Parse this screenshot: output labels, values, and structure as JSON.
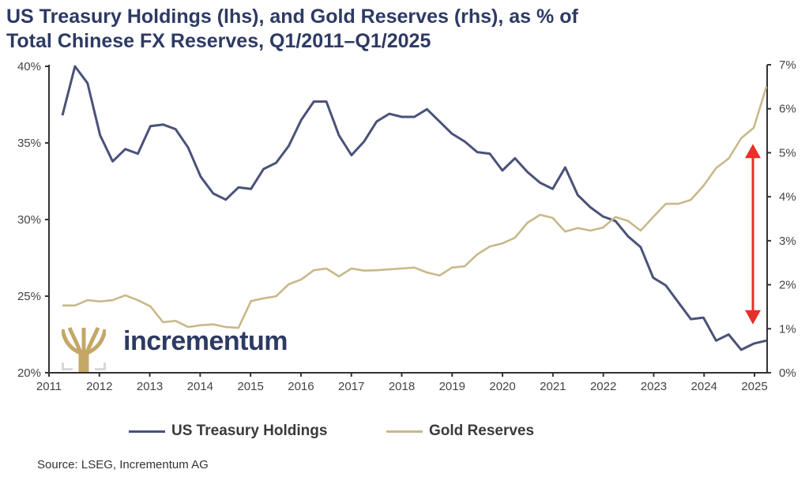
{
  "title_line1": "US Treasury Holdings (lhs), and Gold Reserves (rhs), as % of",
  "title_line2": "Total Chinese FX Reserves, Q1/2011–Q1/2025",
  "source": "Source: LSEG, Incrementum AG",
  "logo": {
    "text": "incrementum",
    "icon": "tree-icon"
  },
  "colors": {
    "treasury": "#4a5278",
    "gold": "#c8b98a",
    "arrow": "#e8302a",
    "axis": "#333333"
  },
  "chart_data": {
    "type": "line",
    "title": "US Treasury Holdings (lhs), and Gold Reserves (rhs), as % of Total Chinese FX Reserves, Q1/2011–Q1/2025",
    "xlabel": "",
    "ylabel_left": "",
    "ylabel_right": "",
    "x_start": 2011.25,
    "x_step": 0.25,
    "xlim": [
      2011,
      2025.25
    ],
    "x_ticks": [
      "2011",
      "2012",
      "2013",
      "2014",
      "2015",
      "2016",
      "2017",
      "2018",
      "2019",
      "2020",
      "2021",
      "2022",
      "2023",
      "2024",
      "2025"
    ],
    "ylim_left": [
      20,
      40
    ],
    "y_ticks_left": [
      "20%",
      "25%",
      "30%",
      "35%",
      "40%"
    ],
    "ylim_right": [
      0,
      7
    ],
    "y_ticks_right": [
      "0%",
      "1%",
      "2%",
      "3%",
      "4%",
      "5%",
      "6%",
      "7%"
    ],
    "legend_position": "bottom",
    "grid": false,
    "series": [
      {
        "name": "US Treasury Holdings",
        "axis": "left",
        "values": [
          36.8,
          40.0,
          38.9,
          35.5,
          33.8,
          34.6,
          34.3,
          36.1,
          36.2,
          35.9,
          34.7,
          32.8,
          31.7,
          31.3,
          32.1,
          32.0,
          33.3,
          33.7,
          34.8,
          36.5,
          37.7,
          37.7,
          35.5,
          34.2,
          35.1,
          36.4,
          36.9,
          36.7,
          36.7,
          37.2,
          36.4,
          35.6,
          35.1,
          34.4,
          34.3,
          33.2,
          34.0,
          33.1,
          32.4,
          32.0,
          33.4,
          31.6,
          30.8,
          30.2,
          29.9,
          28.9,
          28.2,
          26.2,
          25.7,
          24.6,
          23.5,
          23.6,
          22.1,
          22.5,
          21.5,
          21.9,
          22.1
        ]
      },
      {
        "name": "Gold Reserves",
        "axis": "right",
        "values": [
          1.53,
          1.53,
          1.65,
          1.62,
          1.65,
          1.76,
          1.65,
          1.51,
          1.15,
          1.18,
          1.04,
          1.08,
          1.1,
          1.04,
          1.02,
          1.63,
          1.69,
          1.74,
          2.01,
          2.12,
          2.33,
          2.37,
          2.19,
          2.37,
          2.32,
          2.33,
          2.35,
          2.37,
          2.39,
          2.28,
          2.21,
          2.39,
          2.42,
          2.69,
          2.87,
          2.94,
          3.07,
          3.41,
          3.59,
          3.52,
          3.21,
          3.29,
          3.23,
          3.3,
          3.54,
          3.45,
          3.23,
          3.54,
          3.84,
          3.84,
          3.93,
          4.25,
          4.65,
          4.87,
          5.33,
          5.57,
          6.5
        ]
      }
    ],
    "annotations": [
      {
        "type": "double-arrow",
        "description": "red vertical double-headed arrow",
        "x": 2024.75,
        "y_right_range": [
          1.1,
          5.2
        ]
      }
    ]
  },
  "legend": [
    {
      "label": "US Treasury Holdings"
    },
    {
      "label": "Gold Reserves"
    }
  ]
}
